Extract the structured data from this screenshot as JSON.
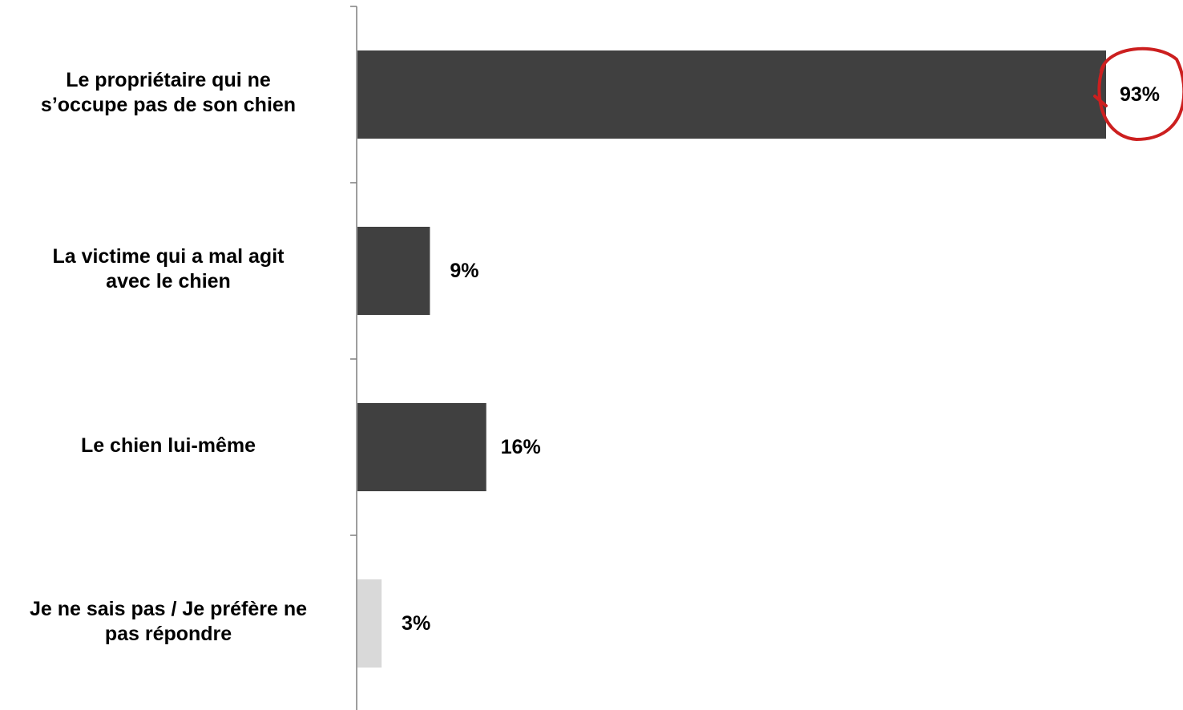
{
  "chart_data": {
    "type": "bar",
    "orientation": "horizontal",
    "title": "",
    "xlabel": "",
    "ylabel": "",
    "xlim": [
      0,
      100
    ],
    "grid": false,
    "legend": "none",
    "categories": [
      [
        "Le propriétaire qui ne",
        "s’occupe pas de son chien"
      ],
      [
        "La victime qui a mal agit",
        "avec le chien"
      ],
      [
        "Le chien lui-même"
      ],
      [
        "Je ne sais pas / Je préfère ne",
        "pas répondre"
      ]
    ],
    "values": [
      93,
      9,
      16,
      3
    ],
    "value_labels": [
      "93%",
      "9%",
      "16%",
      "3%"
    ],
    "bar_colors": [
      "#404040",
      "#404040",
      "#404040",
      "#d9d9d9"
    ],
    "highlight": {
      "index": 0,
      "shape": "circle",
      "color": "#cc1f1f"
    }
  }
}
